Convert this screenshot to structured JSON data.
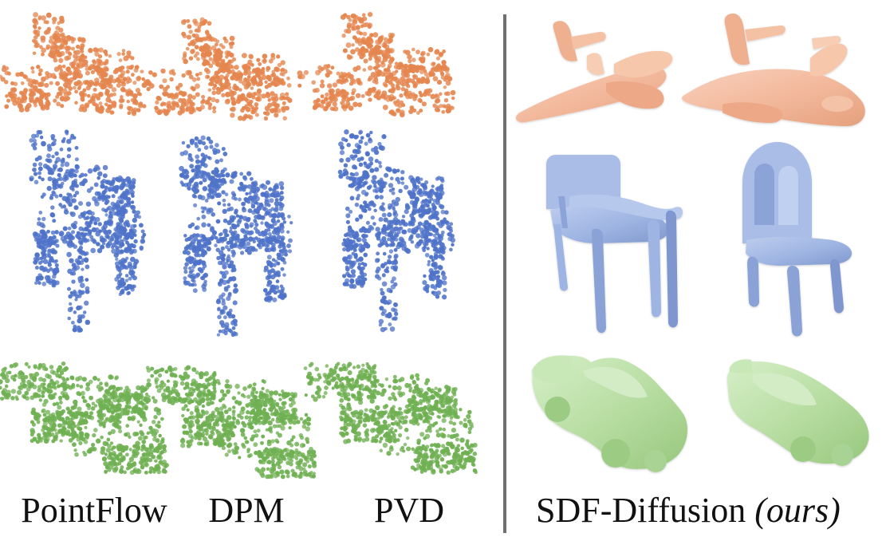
{
  "figure": {
    "columns": [
      {
        "name": "PointFlow",
        "style": "point-cloud"
      },
      {
        "name": "DPM",
        "style": "point-cloud"
      },
      {
        "name": "PVD",
        "style": "point-cloud"
      },
      {
        "name": "SDF-Diffusion",
        "style": "mesh"
      }
    ],
    "rows": [
      "airplane",
      "chair",
      "car"
    ],
    "colors": {
      "airplane": "#e5864f",
      "airplane_mesh": "#f2b79a",
      "chair": "#4f73c9",
      "chair_mesh": "#9eb4e2",
      "car": "#6fb052",
      "car_mesh": "#b6dca0",
      "divider": "#6f6f6f"
    }
  },
  "labels": {
    "pointflow": "PointFlow",
    "dpm": "DPM",
    "pvd": "PVD",
    "sdf_diffusion": "SDF-Diffusion",
    "ours": "(ours)"
  }
}
